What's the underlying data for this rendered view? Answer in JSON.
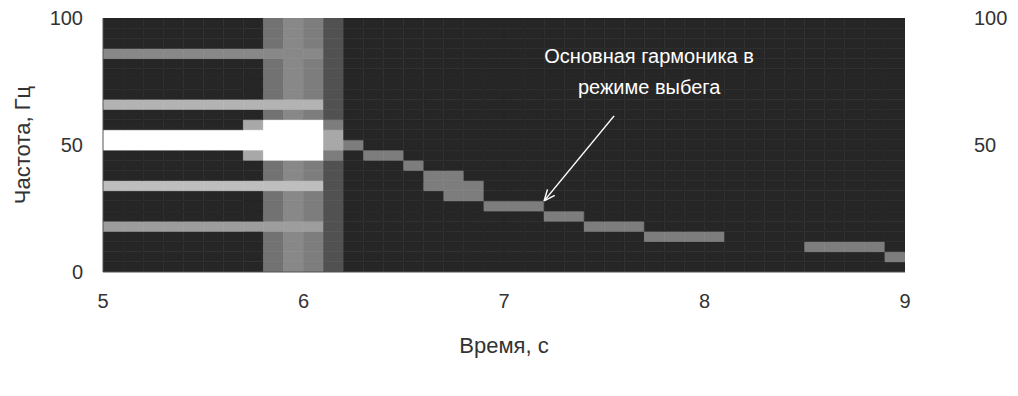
{
  "chart_data": {
    "type": "heatmap",
    "x_label": "Время, с",
    "y_label": "Частота, Гц",
    "x": [
      5.05,
      5.15,
      5.25,
      5.35,
      5.45,
      5.55,
      5.65,
      5.75,
      5.85,
      5.95,
      6.05,
      6.15,
      6.25,
      6.35,
      6.45,
      6.55,
      6.65,
      6.75,
      6.85,
      6.95,
      7.05,
      7.15,
      7.25,
      7.35,
      7.45,
      7.55,
      7.65,
      7.75,
      7.85,
      7.95,
      8.05,
      8.15,
      8.25,
      8.35,
      8.45,
      8.55,
      8.65,
      8.75,
      8.85,
      8.95
    ],
    "y": [
      2,
      6,
      10,
      14,
      18,
      22,
      26,
      30,
      34,
      38,
      42,
      46,
      50,
      54,
      58,
      62,
      66,
      70,
      74,
      78,
      82,
      86,
      90,
      94,
      98
    ],
    "values": [
      [
        0,
        0,
        0,
        0,
        0,
        0,
        0,
        0,
        35,
        45,
        40,
        20,
        0,
        0,
        0,
        0,
        0,
        0,
        0,
        0,
        0,
        0,
        0,
        0,
        0,
        0,
        0,
        0,
        0,
        0,
        0,
        0,
        0,
        0,
        0,
        0,
        0,
        0,
        0,
        0
      ],
      [
        0,
        0,
        0,
        0,
        0,
        0,
        0,
        0,
        35,
        45,
        40,
        20,
        0,
        0,
        0,
        0,
        0,
        0,
        0,
        0,
        0,
        0,
        0,
        0,
        0,
        0,
        0,
        0,
        0,
        0,
        0,
        0,
        0,
        0,
        0,
        0,
        0,
        0,
        0,
        40
      ],
      [
        0,
        0,
        0,
        0,
        0,
        0,
        0,
        0,
        35,
        45,
        40,
        20,
        0,
        0,
        0,
        0,
        0,
        0,
        0,
        0,
        0,
        0,
        0,
        0,
        0,
        0,
        0,
        0,
        0,
        0,
        0,
        0,
        0,
        0,
        0,
        40,
        40,
        40,
        40,
        0
      ],
      [
        0,
        0,
        0,
        0,
        0,
        0,
        0,
        0,
        35,
        45,
        40,
        20,
        0,
        0,
        0,
        0,
        0,
        0,
        0,
        0,
        0,
        0,
        0,
        0,
        0,
        0,
        0,
        40,
        40,
        40,
        40,
        0,
        0,
        0,
        0,
        0,
        0,
        0,
        0,
        0
      ],
      [
        55,
        55,
        55,
        55,
        55,
        55,
        55,
        55,
        55,
        55,
        55,
        20,
        0,
        0,
        0,
        0,
        0,
        0,
        0,
        0,
        0,
        0,
        0,
        0,
        40,
        40,
        40,
        0,
        0,
        0,
        0,
        0,
        0,
        0,
        0,
        0,
        0,
        0,
        0,
        0
      ],
      [
        0,
        0,
        0,
        0,
        0,
        0,
        0,
        0,
        35,
        45,
        40,
        20,
        0,
        0,
        0,
        0,
        0,
        0,
        0,
        0,
        0,
        0,
        40,
        40,
        0,
        0,
        0,
        0,
        0,
        0,
        0,
        0,
        0,
        0,
        0,
        0,
        0,
        0,
        0,
        0
      ],
      [
        0,
        0,
        0,
        0,
        0,
        0,
        0,
        0,
        35,
        45,
        40,
        20,
        0,
        0,
        0,
        0,
        0,
        0,
        0,
        40,
        40,
        40,
        0,
        0,
        0,
        0,
        0,
        0,
        0,
        0,
        0,
        0,
        0,
        0,
        0,
        0,
        0,
        0,
        0,
        0
      ],
      [
        0,
        0,
        0,
        0,
        0,
        0,
        0,
        0,
        35,
        45,
        40,
        20,
        0,
        0,
        0,
        0,
        0,
        40,
        40,
        0,
        0,
        0,
        0,
        0,
        0,
        0,
        0,
        0,
        0,
        0,
        0,
        0,
        0,
        0,
        0,
        0,
        0,
        0,
        0,
        0
      ],
      [
        70,
        70,
        70,
        70,
        70,
        70,
        70,
        70,
        70,
        70,
        70,
        20,
        0,
        0,
        0,
        0,
        40,
        40,
        40,
        0,
        0,
        0,
        0,
        0,
        0,
        0,
        0,
        0,
        0,
        0,
        0,
        0,
        0,
        0,
        0,
        0,
        0,
        0,
        0,
        0
      ],
      [
        0,
        0,
        0,
        0,
        0,
        0,
        0,
        0,
        35,
        45,
        40,
        20,
        0,
        0,
        0,
        0,
        40,
        40,
        0,
        0,
        0,
        0,
        0,
        0,
        0,
        0,
        0,
        0,
        0,
        0,
        0,
        0,
        0,
        0,
        0,
        0,
        0,
        0,
        0,
        0
      ],
      [
        0,
        0,
        0,
        0,
        0,
        0,
        0,
        0,
        35,
        45,
        40,
        20,
        0,
        0,
        0,
        40,
        0,
        0,
        0,
        0,
        0,
        0,
        0,
        0,
        0,
        0,
        0,
        0,
        0,
        0,
        0,
        0,
        0,
        0,
        0,
        0,
        0,
        0,
        0,
        0
      ],
      [
        0,
        0,
        0,
        0,
        0,
        0,
        0,
        60,
        100,
        100,
        100,
        40,
        0,
        40,
        40,
        0,
        0,
        0,
        0,
        0,
        0,
        0,
        0,
        0,
        0,
        0,
        0,
        0,
        0,
        0,
        0,
        0,
        0,
        0,
        0,
        0,
        0,
        0,
        0,
        0
      ],
      [
        100,
        100,
        100,
        100,
        100,
        100,
        100,
        100,
        100,
        100,
        100,
        60,
        40,
        0,
        0,
        0,
        0,
        0,
        0,
        0,
        0,
        0,
        0,
        0,
        0,
        0,
        0,
        0,
        0,
        0,
        0,
        0,
        0,
        0,
        0,
        0,
        0,
        0,
        0,
        0
      ],
      [
        100,
        100,
        100,
        100,
        100,
        100,
        100,
        100,
        100,
        100,
        100,
        60,
        0,
        0,
        0,
        0,
        0,
        0,
        0,
        0,
        0,
        0,
        0,
        0,
        0,
        0,
        0,
        0,
        0,
        0,
        0,
        0,
        0,
        0,
        0,
        0,
        0,
        0,
        0,
        0
      ],
      [
        0,
        0,
        0,
        0,
        0,
        0,
        0,
        60,
        100,
        100,
        100,
        40,
        0,
        0,
        0,
        0,
        0,
        0,
        0,
        0,
        0,
        0,
        0,
        0,
        0,
        0,
        0,
        0,
        0,
        0,
        0,
        0,
        0,
        0,
        0,
        0,
        0,
        0,
        0,
        0
      ],
      [
        0,
        0,
        0,
        0,
        0,
        0,
        0,
        0,
        35,
        45,
        40,
        20,
        0,
        0,
        0,
        0,
        0,
        0,
        0,
        0,
        0,
        0,
        0,
        0,
        0,
        0,
        0,
        0,
        0,
        0,
        0,
        0,
        0,
        0,
        0,
        0,
        0,
        0,
        0,
        0
      ],
      [
        65,
        65,
        65,
        65,
        65,
        65,
        65,
        65,
        65,
        65,
        65,
        20,
        0,
        0,
        0,
        0,
        0,
        0,
        0,
        0,
        0,
        0,
        0,
        0,
        0,
        0,
        0,
        0,
        0,
        0,
        0,
        0,
        0,
        0,
        0,
        0,
        0,
        0,
        0,
        0
      ],
      [
        0,
        0,
        0,
        0,
        0,
        0,
        0,
        0,
        35,
        45,
        40,
        20,
        0,
        0,
        0,
        0,
        0,
        0,
        0,
        0,
        0,
        0,
        0,
        0,
        0,
        0,
        0,
        0,
        0,
        0,
        0,
        0,
        0,
        0,
        0,
        0,
        0,
        0,
        0,
        0
      ],
      [
        0,
        0,
        0,
        0,
        0,
        0,
        0,
        0,
        35,
        45,
        40,
        20,
        0,
        0,
        0,
        0,
        0,
        0,
        0,
        0,
        0,
        0,
        0,
        0,
        0,
        0,
        0,
        0,
        0,
        0,
        0,
        0,
        0,
        0,
        0,
        0,
        0,
        0,
        0,
        0
      ],
      [
        0,
        0,
        0,
        0,
        0,
        0,
        0,
        0,
        35,
        45,
        40,
        20,
        0,
        0,
        0,
        0,
        0,
        0,
        0,
        0,
        0,
        0,
        0,
        0,
        0,
        0,
        0,
        0,
        0,
        0,
        0,
        0,
        0,
        0,
        0,
        0,
        0,
        0,
        0,
        0
      ],
      [
        0,
        0,
        0,
        0,
        0,
        0,
        0,
        0,
        35,
        45,
        40,
        20,
        0,
        0,
        0,
        0,
        0,
        0,
        0,
        0,
        0,
        0,
        0,
        0,
        0,
        0,
        0,
        0,
        0,
        0,
        0,
        0,
        0,
        0,
        0,
        0,
        0,
        0,
        0,
        0
      ],
      [
        45,
        45,
        45,
        45,
        45,
        45,
        45,
        45,
        45,
        45,
        45,
        20,
        0,
        0,
        0,
        0,
        0,
        0,
        0,
        0,
        0,
        0,
        0,
        0,
        0,
        0,
        0,
        0,
        0,
        0,
        0,
        0,
        0,
        0,
        0,
        0,
        0,
        0,
        0,
        0
      ],
      [
        0,
        0,
        0,
        0,
        0,
        0,
        0,
        0,
        35,
        45,
        40,
        20,
        0,
        0,
        0,
        0,
        0,
        0,
        0,
        0,
        0,
        0,
        0,
        0,
        0,
        0,
        0,
        0,
        0,
        0,
        0,
        0,
        0,
        0,
        0,
        0,
        0,
        0,
        0,
        0
      ],
      [
        0,
        0,
        0,
        0,
        0,
        0,
        0,
        0,
        35,
        45,
        40,
        20,
        0,
        0,
        0,
        0,
        0,
        0,
        0,
        0,
        0,
        0,
        0,
        0,
        0,
        0,
        0,
        0,
        0,
        0,
        0,
        0,
        0,
        0,
        0,
        0,
        0,
        0,
        0,
        0
      ],
      [
        0,
        0,
        0,
        0,
        0,
        0,
        0,
        0,
        35,
        45,
        40,
        20,
        0,
        0,
        0,
        0,
        0,
        0,
        0,
        0,
        0,
        0,
        0,
        0,
        0,
        0,
        0,
        0,
        0,
        0,
        0,
        0,
        0,
        0,
        0,
        0,
        0,
        0,
        0,
        0
      ]
    ],
    "xlim": [
      5,
      9
    ],
    "xticks": [
      5,
      6,
      7,
      8,
      9
    ],
    "ylim": [
      0,
      100
    ],
    "yticks": [
      0,
      50,
      100
    ],
    "colorbar": {
      "range": [
        0,
        100
      ],
      "ticks": [
        50,
        100
      ]
    },
    "annotations": [
      {
        "text": "Основная гармоника в\nрежиме выбега",
        "x": 7.2,
        "y": 28
      }
    ]
  }
}
